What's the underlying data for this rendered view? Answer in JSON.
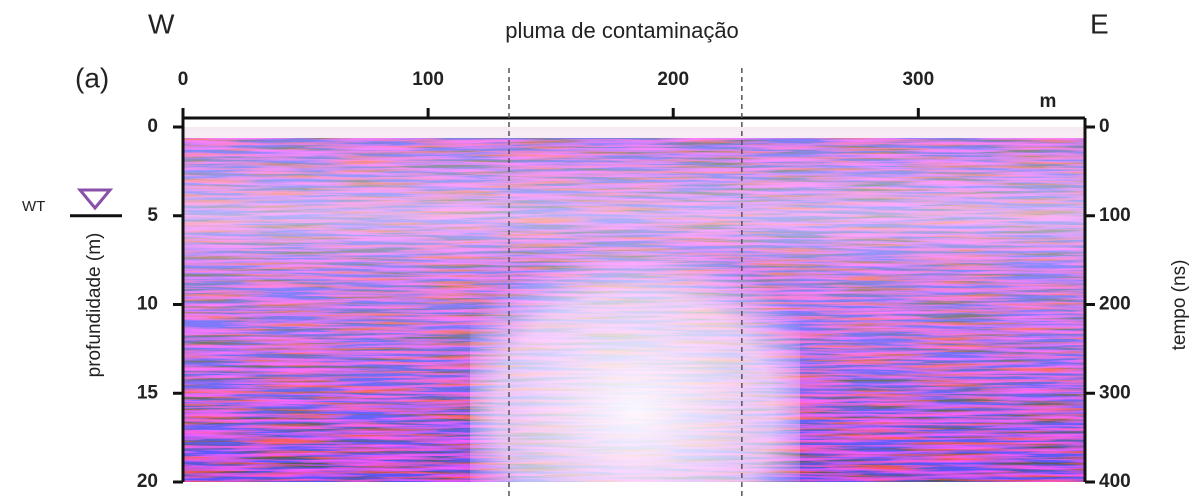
{
  "chart_data": {
    "type": "radargram",
    "title": "pluma de contaminação",
    "left_label": "W",
    "right_label": "E",
    "panel_label": "(a)",
    "x_unit": "m",
    "ylabel": "profundidade (m)",
    "y2label": "tempo (ns)",
    "water_table_label": "WT",
    "xlim": [
      0,
      368
    ],
    "xticks": [
      0,
      100,
      200,
      300
    ],
    "ylim": [
      0,
      20
    ],
    "yticks": [
      0,
      5,
      10,
      15,
      20
    ],
    "y2lim": [
      0,
      400
    ],
    "y2ticks": [
      0,
      100,
      200,
      300,
      400
    ],
    "plume_bounds": [
      133,
      228
    ],
    "water_table_depth": 5
  }
}
